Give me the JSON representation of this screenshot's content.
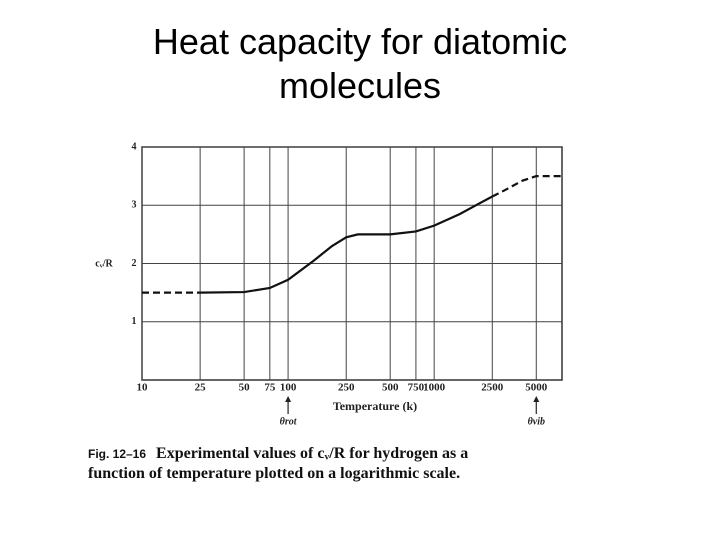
{
  "chart_data": {
    "type": "line",
    "title": "Heat capacity for diatomic molecules",
    "x_label": "Temperature (k)",
    "y_label": "cᵥ/R",
    "log_x": true,
    "grid": true,
    "xlim": [
      10,
      7500
    ],
    "xticks": [
      10,
      25,
      50,
      75,
      100,
      250,
      500,
      750,
      1000,
      2500,
      5000
    ],
    "ylim": [
      0,
      4
    ],
    "yticks": [
      1,
      2,
      3,
      4
    ],
    "series": [
      {
        "color": "#111111",
        "dashed": false,
        "x": [
          25,
          50,
          75,
          100,
          150,
          200,
          250,
          300,
          500,
          750,
          1000,
          1500,
          2000,
          2500
        ],
        "values": [
          1.5,
          1.51,
          1.58,
          1.72,
          2.05,
          2.3,
          2.45,
          2.5,
          2.5,
          2.55,
          2.65,
          2.85,
          3.02,
          3.15
        ]
      },
      {
        "color": "#111111",
        "dashed": true,
        "x": [
          10,
          25,
          40,
          2500,
          3000,
          4000,
          5000,
          7500
        ],
        "values": [
          1.5,
          1.5,
          null,
          3.15,
          3.25,
          3.42,
          3.5,
          3.5
        ]
      }
    ],
    "annotations": [
      {
        "text": "θrot",
        "x": 100
      },
      {
        "text": "θvib",
        "x": 5000
      }
    ],
    "caption": {
      "label": "Fig. 12–16",
      "lines": [
        "Experimental values of cᵥ/R for hydrogen as a",
        "function of temperature plotted on a logarithmic scale."
      ]
    }
  }
}
